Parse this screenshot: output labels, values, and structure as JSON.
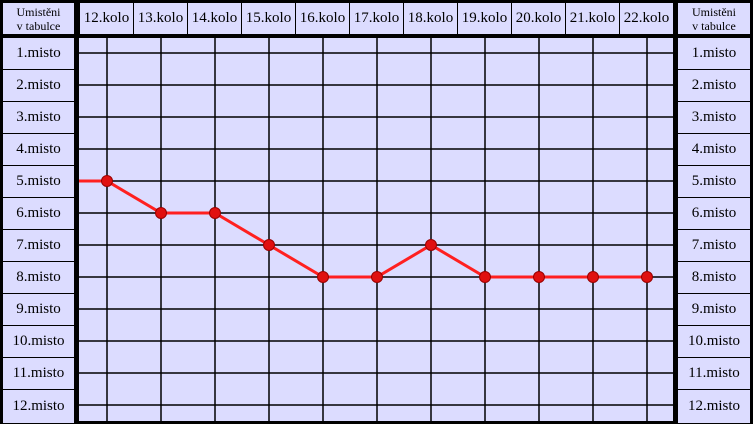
{
  "chart_data": {
    "type": "line",
    "corner_label": [
      "Umistěni",
      "v tabulce"
    ],
    "categories": [
      "12.kolo",
      "13.kolo",
      "14.kolo",
      "15.kolo",
      "16.kolo",
      "17.kolo",
      "18.kolo",
      "19.kolo",
      "20.kolo",
      "21.kolo",
      "22.kolo"
    ],
    "y_labels": [
      "1.misto",
      "2.misto",
      "3.misto",
      "4.misto",
      "5.misto",
      "6.misto",
      "7.misto",
      "8.misto",
      "9.misto",
      "10.misto",
      "11.misto",
      "12.misto"
    ],
    "values": [
      5,
      6,
      6,
      7,
      8,
      8,
      7,
      8,
      8,
      8,
      8
    ],
    "ylim": [
      1,
      12
    ],
    "y_inverted": true,
    "grid": true,
    "colors": {
      "background": "#dcdcff",
      "line": "#ff2020",
      "marker": "#e01010",
      "grid": "#000000"
    }
  }
}
